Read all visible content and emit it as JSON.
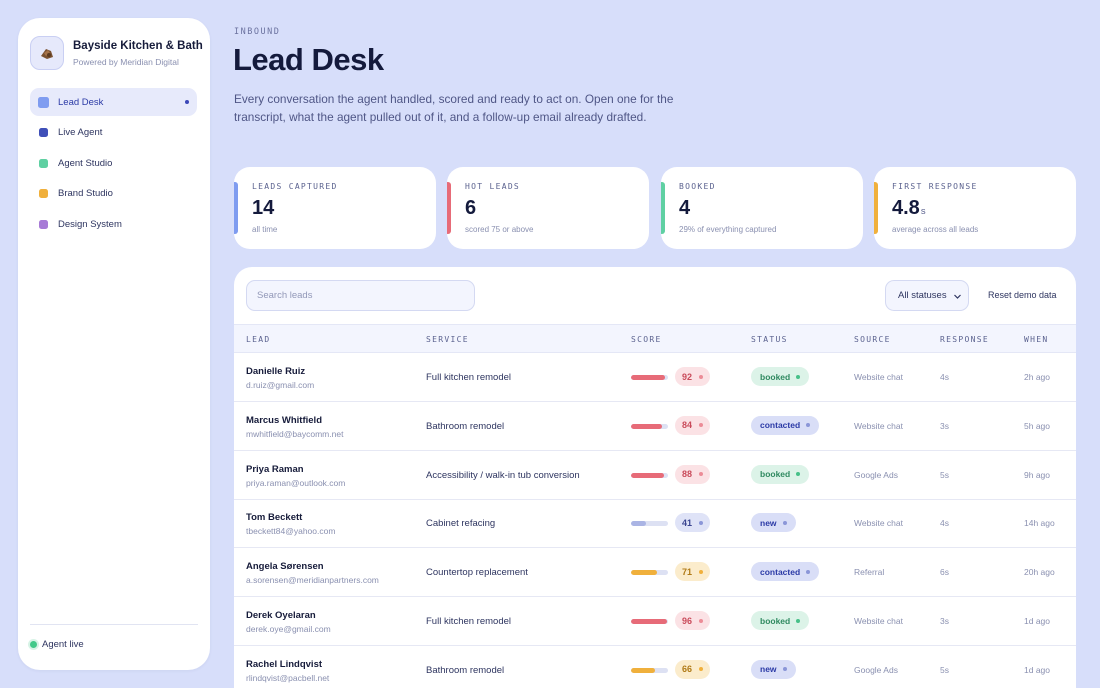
{
  "sidebar": {
    "brand_name": "Bayside Kitchen & Bath",
    "brand_sub": "Powered by Meridian Digital",
    "nav": [
      {
        "label": "Lead Desk",
        "color": "#7f9cf0",
        "active": true
      },
      {
        "label": "Live Agent",
        "color": "#3f4fb8"
      },
      {
        "label": "Agent Studio",
        "color": "#5fd0a2"
      },
      {
        "label": "Brand Studio",
        "color": "#f0b03c"
      },
      {
        "label": "Design System",
        "color": "#a77ad6"
      }
    ],
    "status": "Agent live"
  },
  "header": {
    "eyebrow": "INBOUND",
    "title": "Lead Desk",
    "description": "Every conversation the agent handled, scored and ready to act on. Open one for the transcript, what the agent pulled out of it, and a follow-up email already drafted."
  },
  "stats": [
    {
      "label": "LEADS CAPTURED",
      "value": "14",
      "unit": "",
      "note": "all time",
      "color": "#7f9cf0"
    },
    {
      "label": "HOT LEADS",
      "value": "6",
      "unit": "",
      "note": "scored 75 or above",
      "color": "#e76b78"
    },
    {
      "label": "BOOKED",
      "value": "4",
      "unit": "",
      "note": "29% of everything captured",
      "color": "#5fd0a2"
    },
    {
      "label": "FIRST RESPONSE",
      "value": "4.8",
      "unit": "s",
      "note": "average across all leads",
      "color": "#f0b03c"
    }
  ],
  "toolbar": {
    "search_placeholder": "Search leads",
    "status_filter": "All statuses",
    "reset_label": "Reset demo data"
  },
  "table": {
    "columns": [
      "LEAD",
      "SERVICE",
      "SCORE",
      "STATUS",
      "SOURCE",
      "RESPONSE",
      "WHEN"
    ],
    "rows": [
      {
        "name": "Danielle Ruiz",
        "email": "d.ruiz@gmail.com",
        "service": "Full kitchen remodel",
        "score": 92,
        "status": "booked",
        "source": "Website chat",
        "response": "4s",
        "when": "2h ago"
      },
      {
        "name": "Marcus Whitfield",
        "email": "mwhitfield@baycomm.net",
        "service": "Bathroom remodel",
        "score": 84,
        "status": "contacted",
        "source": "Website chat",
        "response": "3s",
        "when": "5h ago"
      },
      {
        "name": "Priya Raman",
        "email": "priya.raman@outlook.com",
        "service": "Accessibility / walk-in tub conversion",
        "score": 88,
        "status": "booked",
        "source": "Google Ads",
        "response": "5s",
        "when": "9h ago"
      },
      {
        "name": "Tom Beckett",
        "email": "tbeckett84@yahoo.com",
        "service": "Cabinet refacing",
        "score": 41,
        "status": "new",
        "source": "Website chat",
        "response": "4s",
        "when": "14h ago"
      },
      {
        "name": "Angela Sørensen",
        "email": "a.sorensen@meridianpartners.com",
        "service": "Countertop replacement",
        "score": 71,
        "status": "contacted",
        "source": "Referral",
        "response": "6s",
        "when": "20h ago"
      },
      {
        "name": "Derek Oyelaran",
        "email": "derek.oye@gmail.com",
        "service": "Full kitchen remodel",
        "score": 96,
        "status": "booked",
        "source": "Website chat",
        "response": "3s",
        "when": "1d ago"
      },
      {
        "name": "Rachel Lindqvist",
        "email": "rlindqvist@pacbell.net",
        "service": "Bathroom remodel",
        "score": 66,
        "status": "new",
        "source": "Google Ads",
        "response": "5s",
        "when": "1d ago"
      }
    ]
  },
  "colors": {
    "hot": "#e76b78",
    "warm": "#f0b03c",
    "cold": "#aab4e4",
    "booked": "#3fa877",
    "contacted": "#3b47b8",
    "new": "#3b47b8"
  }
}
